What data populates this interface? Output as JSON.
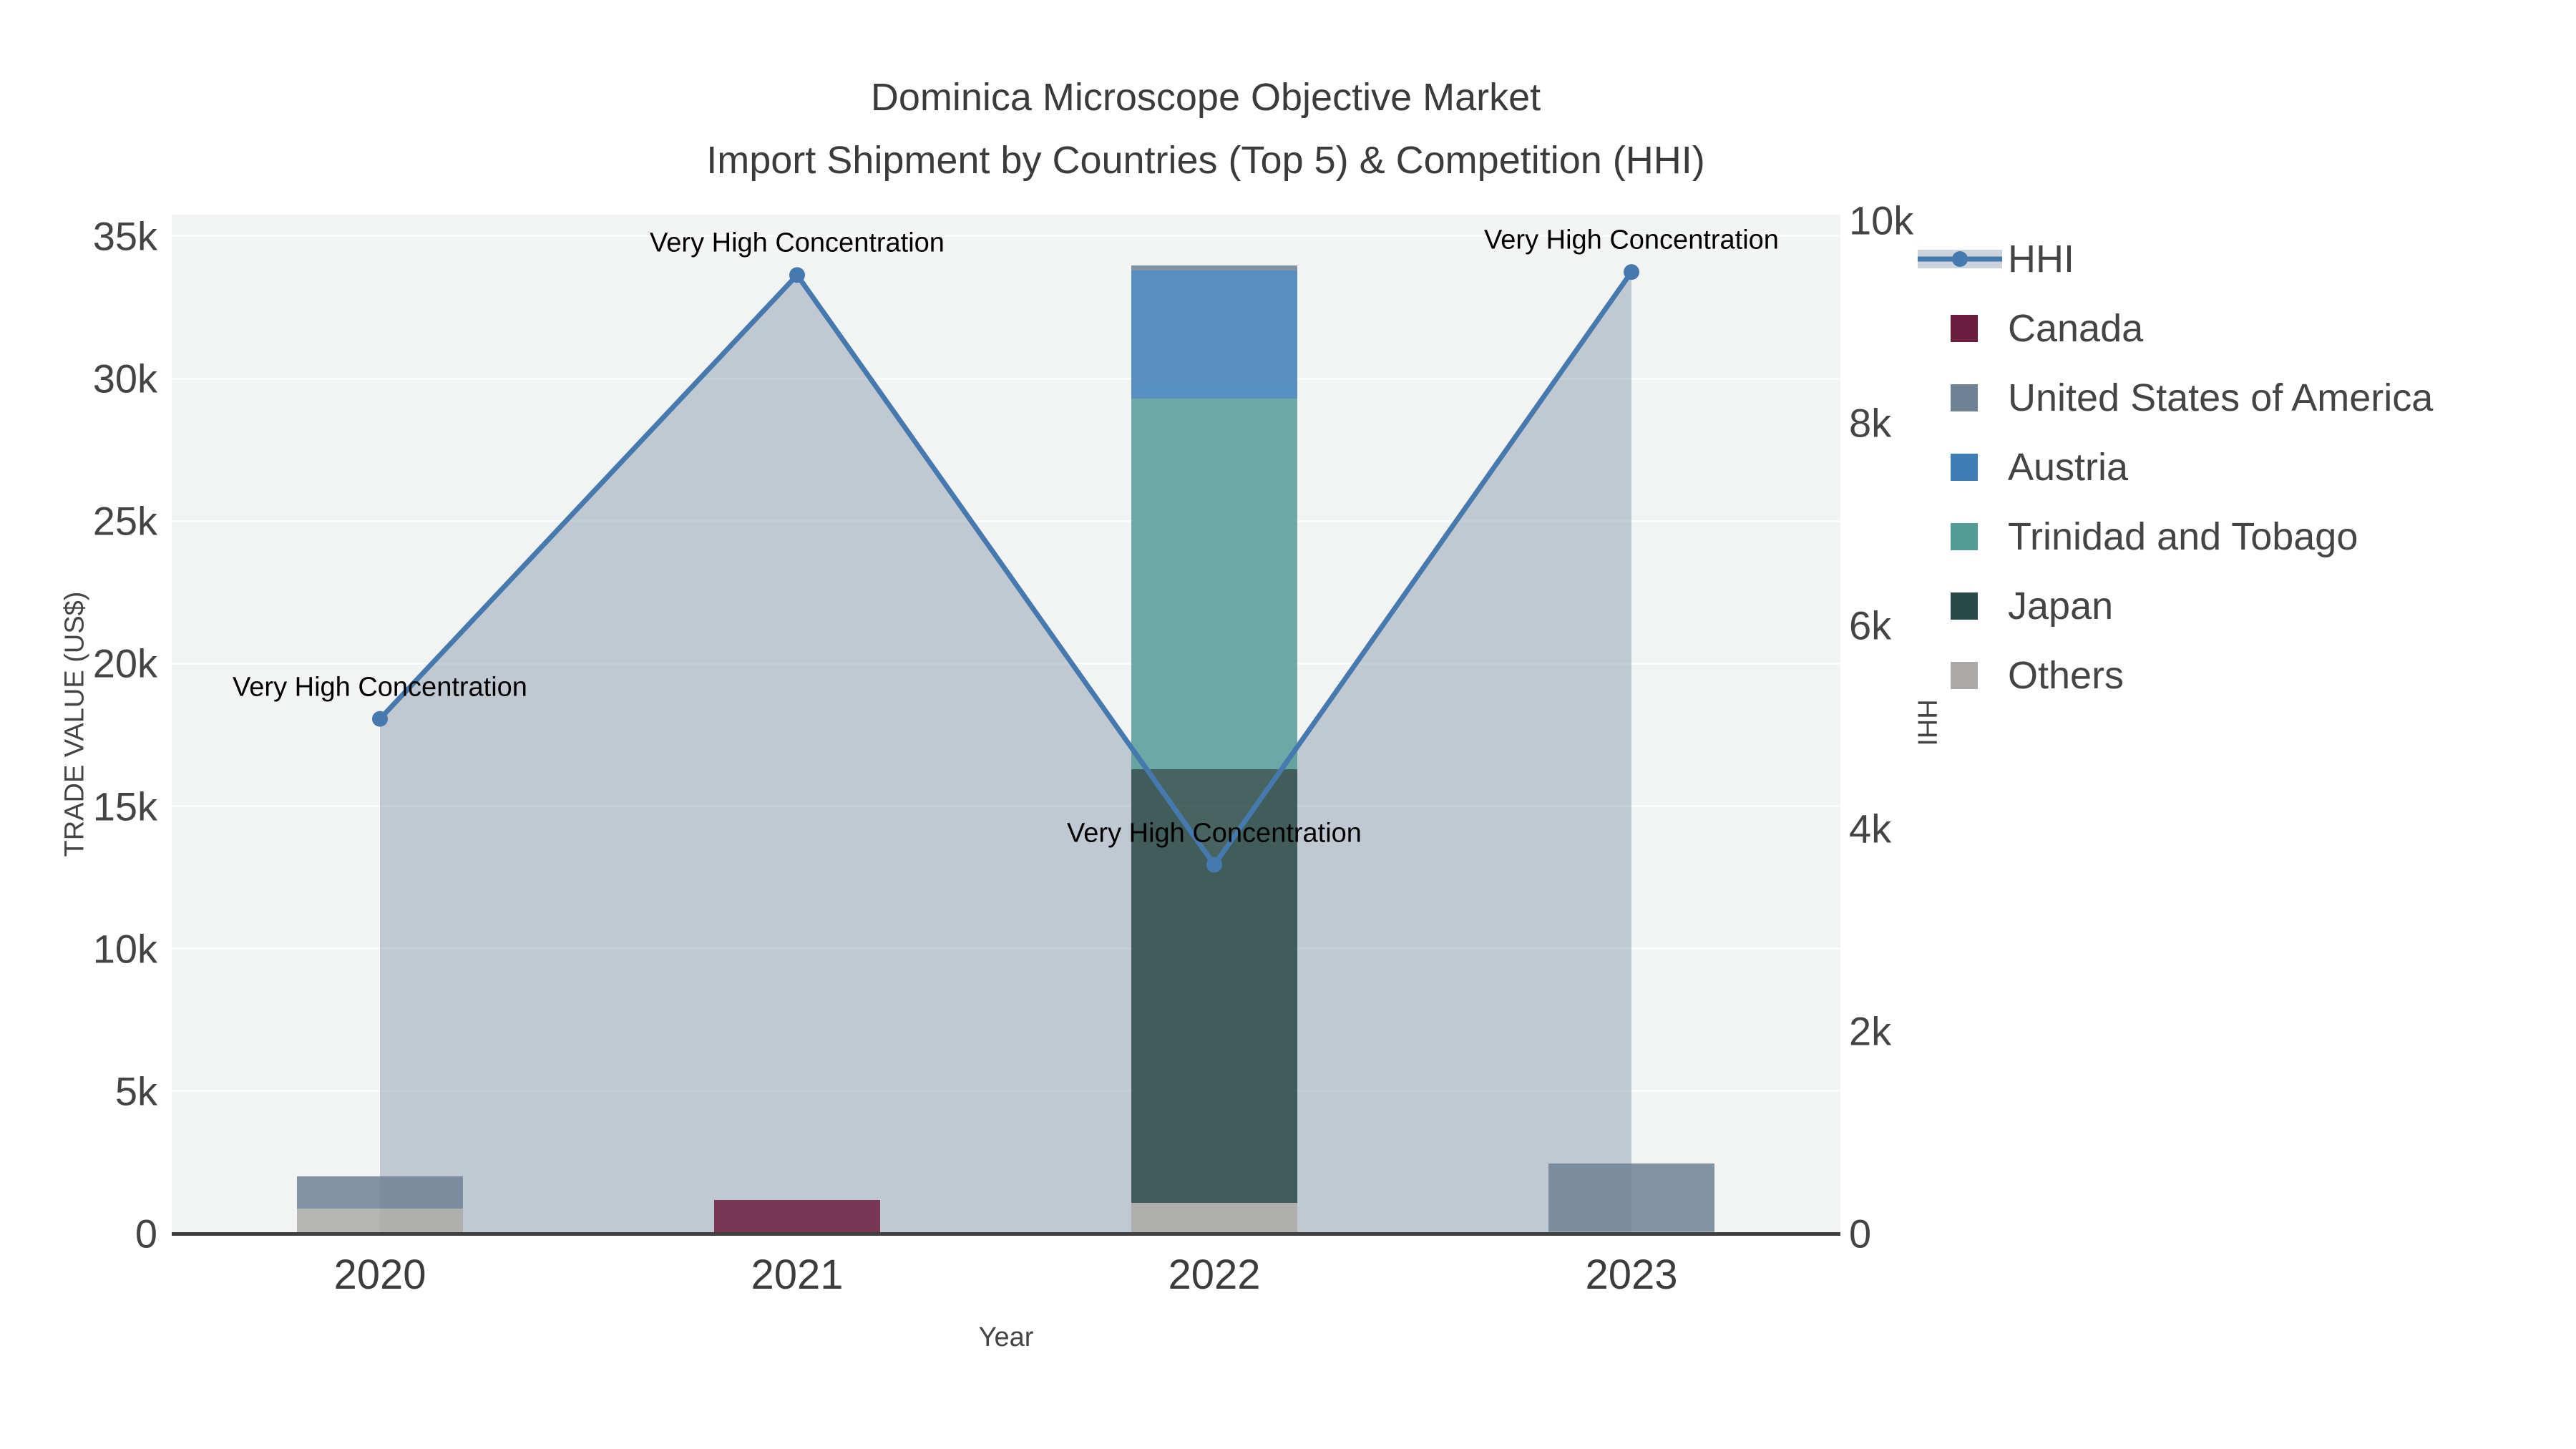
{
  "title": {
    "line1": "Dominica Microscope Objective Market",
    "line2": "Import Shipment by Countries (Top 5) & Competition (HHI)"
  },
  "axes": {
    "x": {
      "title": "Year",
      "categories": [
        "2020",
        "2021",
        "2022",
        "2023"
      ]
    },
    "y1": {
      "title": "TRADE VALUE (US$)",
      "ticks": [
        {
          "value": 0,
          "label": "0"
        },
        {
          "value": 5000,
          "label": "5k"
        },
        {
          "value": 10000,
          "label": "10k"
        },
        {
          "value": 15000,
          "label": "15k"
        },
        {
          "value": 20000,
          "label": "20k"
        },
        {
          "value": 25000,
          "label": "25k"
        },
        {
          "value": 30000,
          "label": "30k"
        },
        {
          "value": 35000,
          "label": "35k"
        }
      ]
    },
    "y2": {
      "title": "HHI",
      "ticks": [
        {
          "value": 0,
          "label": "0"
        },
        {
          "value": 2000,
          "label": "2k"
        },
        {
          "value": 4000,
          "label": "4k"
        },
        {
          "value": 6000,
          "label": "6k"
        },
        {
          "value": 8000,
          "label": "8k"
        },
        {
          "value": 10000,
          "label": "10k"
        }
      ]
    }
  },
  "legend": [
    {
      "name": "HHI",
      "type": "line",
      "color": "#4679ad",
      "band_color": "#ccd3dc"
    },
    {
      "name": "Canada",
      "type": "swatch",
      "color": "#6b1e3e"
    },
    {
      "name": "United States of America",
      "type": "swatch",
      "color": "#6f8195"
    },
    {
      "name": "Austria",
      "type": "swatch",
      "color": "#3f7cb8"
    },
    {
      "name": "Trinidad and Tobago",
      "type": "swatch",
      "color": "#559b98"
    },
    {
      "name": "Japan",
      "type": "swatch",
      "color": "#2a4a47"
    },
    {
      "name": "Others",
      "type": "swatch",
      "color": "#abaaa8"
    }
  ],
  "chart_data": {
    "type": "bar+line",
    "title": "Dominica Microscope Objective Market — Import Shipment by Countries (Top 5) & Competition (HHI)",
    "categories": [
      "2020",
      "2021",
      "2022",
      "2023"
    ],
    "stack_order": [
      "Others",
      "Japan",
      "Trinidad and Tobago",
      "Austria",
      "United States of America",
      "Canada"
    ],
    "series": [
      {
        "name": "Canada",
        "type": "bar",
        "color": "#6b1e3e",
        "values": [
          0,
          1170,
          0,
          0
        ]
      },
      {
        "name": "United States of America",
        "type": "bar",
        "color": "#6f8195",
        "values": [
          1120,
          0,
          170,
          2400
        ]
      },
      {
        "name": "Austria",
        "type": "bar",
        "color": "#3f7cb8",
        "values": [
          0,
          0,
          4500,
          0
        ]
      },
      {
        "name": "Trinidad and Tobago",
        "type": "bar",
        "color": "#559b98",
        "values": [
          0,
          0,
          13000,
          0
        ]
      },
      {
        "name": "Japan",
        "type": "bar",
        "color": "#2a4a47",
        "values": [
          0,
          0,
          15200,
          0
        ]
      },
      {
        "name": "Others",
        "type": "bar",
        "color": "#abaaa8",
        "values": [
          880,
          0,
          1090,
          65
        ]
      }
    ],
    "line": {
      "name": "HHI",
      "axis": "y2",
      "color": "#4679ad",
      "fill": "rgba(125,140,165,0.42)",
      "values": [
        5080,
        9460,
        3640,
        9490
      ]
    },
    "annotations": [
      {
        "x": "2020",
        "text": "Very High Concentration"
      },
      {
        "x": "2021",
        "text": "Very High Concentration"
      },
      {
        "x": "2022",
        "text": "Very High Concentration"
      },
      {
        "x": "2023",
        "text": "Very High Concentration"
      }
    ],
    "xlabel": "Year",
    "ylabel": "TRADE VALUE (US$)",
    "y2label": "HHI",
    "y1_range": [
      0,
      35750
    ],
    "y2_range": [
      0,
      10056
    ],
    "grid": "horizontal-major-5k",
    "legend_position": "right"
  }
}
